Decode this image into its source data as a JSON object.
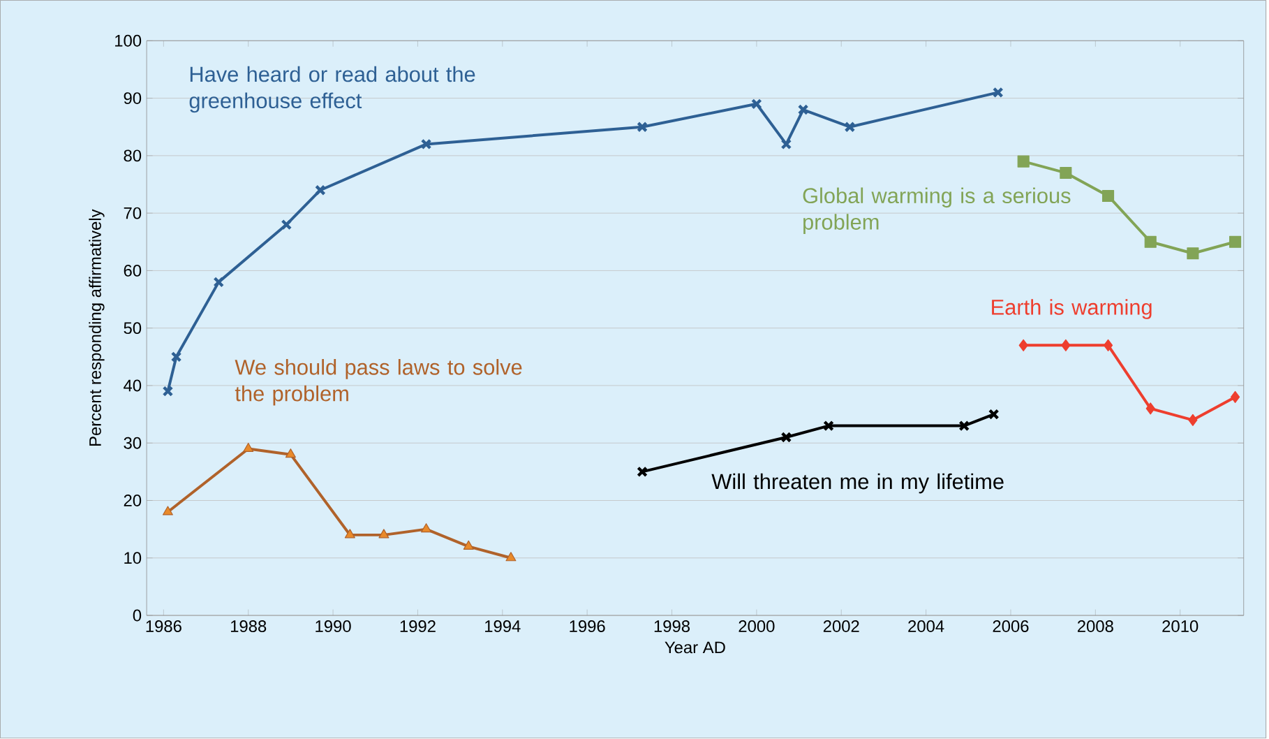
{
  "chart_data": {
    "type": "line",
    "xlabel": "Year AD",
    "ylabel": "Percent responding affirmatively",
    "xlim": [
      1985.6,
      2011.5
    ],
    "ylim": [
      0,
      100
    ],
    "xticks": [
      1986,
      1988,
      1990,
      1992,
      1994,
      1996,
      1998,
      2000,
      2002,
      2004,
      2006,
      2008,
      2010
    ],
    "yticks": [
      0,
      10,
      20,
      30,
      40,
      50,
      60,
      70,
      80,
      90,
      100
    ],
    "grid": "y",
    "legend": false,
    "series": [
      {
        "name": "Have heard or read about the greenhouse effect",
        "color": "#2e6094",
        "marker": "cross",
        "x": [
          1986.1,
          1986.3,
          1987.3,
          1988.9,
          1989.7,
          1992.2,
          1997.3,
          2000.0,
          2000.7,
          2001.1,
          2002.2,
          2005.7
        ],
        "values": [
          39,
          45,
          58,
          68,
          74,
          82,
          85,
          89,
          82,
          88,
          85,
          91
        ]
      },
      {
        "name": "We should pass laws to solve the problem",
        "color": "#b0622a",
        "marker": "triangle",
        "x": [
          1986.1,
          1988.0,
          1989.0,
          1990.4,
          1991.2,
          1992.2,
          1993.2,
          1994.2
        ],
        "values": [
          18,
          29,
          28,
          14,
          14,
          15,
          12,
          10
        ]
      },
      {
        "name": "Will threaten me in my lifetime",
        "color": "#000000",
        "marker": "cross",
        "x": [
          1997.3,
          2000.7,
          2001.7,
          2004.9,
          2005.6
        ],
        "values": [
          25,
          31,
          33,
          33,
          35
        ]
      },
      {
        "name": "Global warming is a serious problem",
        "color": "#82a456",
        "marker": "square",
        "x": [
          2006.3,
          2007.3,
          2008.3,
          2009.3,
          2010.3,
          2011.3
        ],
        "values": [
          79,
          77,
          73,
          65,
          63,
          65
        ]
      },
      {
        "name": "Earth is warming",
        "color": "#ee3e2e",
        "marker": "diamond",
        "x": [
          2006.3,
          2007.3,
          2008.3,
          2009.3,
          2010.3,
          2011.3
        ],
        "values": [
          47,
          47,
          47,
          36,
          34,
          38
        ]
      }
    ]
  }
}
